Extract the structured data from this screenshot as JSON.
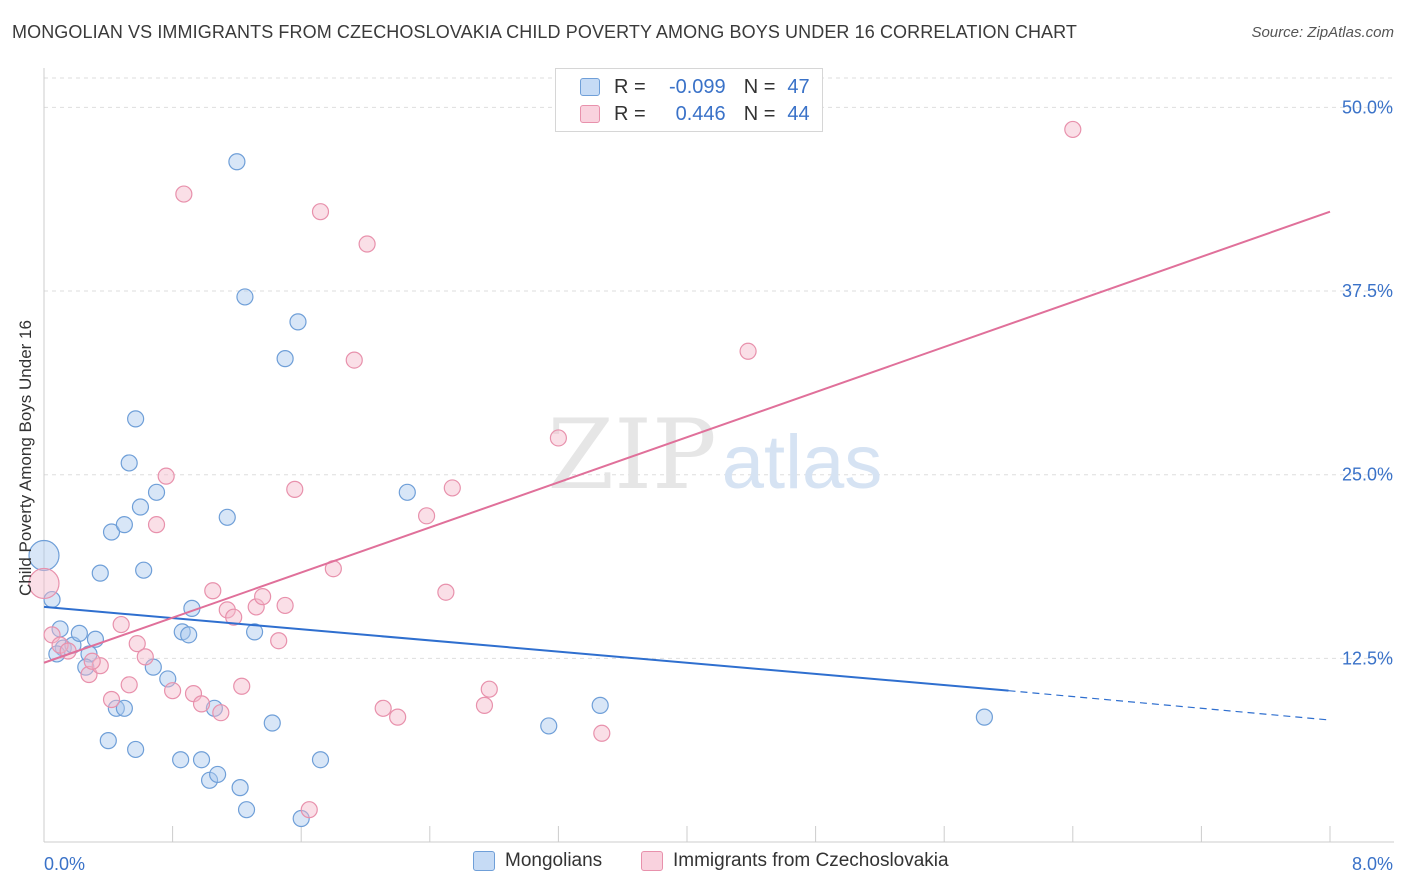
{
  "header": {
    "title": "MONGOLIAN VS IMMIGRANTS FROM CZECHOSLOVAKIA CHILD POVERTY AMONG BOYS UNDER 16 CORRELATION CHART",
    "source": "Source: ZipAtlas.com"
  },
  "watermark": {
    "zip": "ZIP",
    "atlas": "atlas"
  },
  "legend": {
    "rows": [
      {
        "r_label": "R =",
        "r_value": "-0.099",
        "n_label": "N =",
        "n_value": "47",
        "color": "#a9c8ee"
      },
      {
        "r_label": "R =",
        "r_value": "0.446",
        "n_label": "N =",
        "n_value": "44",
        "color": "#f4b7ca"
      }
    ]
  },
  "chart_data": {
    "type": "scatter",
    "title": "MONGOLIAN VS IMMIGRANTS FROM CZECHOSLOVAKIA CHILD POVERTY AMONG BOYS UNDER 16 CORRELATION CHART",
    "ylabel": "Child Poverty Among Boys Under 16",
    "xlabel": "",
    "xlim": [
      0,
      8
    ],
    "ylim": [
      0,
      52
    ],
    "x_tick_labels": [
      "0.0%",
      "8.0%"
    ],
    "y_ticks": [
      12.5,
      25.0,
      37.5,
      50.0
    ],
    "y_tick_labels": [
      "12.5%",
      "25.0%",
      "37.5%",
      "50.0%"
    ],
    "grid": true,
    "legend_placement": "bottom",
    "colors": {
      "mongolians_fill": "#a9c8ee",
      "mongolians_stroke": "#6f9fd8",
      "mongolians_line": "#2f6fcf",
      "czech_fill": "#f4b7ca",
      "czech_stroke": "#e891ac",
      "czech_line": "#e0709a",
      "tick_label": "#3a72c8"
    },
    "series": [
      {
        "name": "Mongolians",
        "trend": {
          "x0": 0.0,
          "y0": 16.0,
          "x1": 6.0,
          "y1": 10.3,
          "x_dash_end": 8.0,
          "y_dash_end": 8.3
        },
        "points": [
          [
            0.0,
            19.5
          ],
          [
            0.05,
            16.5
          ],
          [
            0.1,
            14.5
          ],
          [
            0.12,
            13.2
          ],
          [
            0.08,
            12.8
          ],
          [
            0.18,
            13.4
          ],
          [
            0.22,
            14.2
          ],
          [
            0.28,
            12.8
          ],
          [
            0.32,
            13.8
          ],
          [
            0.26,
            11.9
          ],
          [
            0.35,
            18.3
          ],
          [
            0.42,
            21.1
          ],
          [
            0.5,
            21.6
          ],
          [
            0.53,
            25.8
          ],
          [
            0.4,
            6.9
          ],
          [
            0.45,
            9.1
          ],
          [
            0.57,
            28.8
          ],
          [
            0.6,
            22.8
          ],
          [
            0.62,
            18.5
          ],
          [
            0.7,
            23.8
          ],
          [
            0.68,
            11.9
          ],
          [
            0.77,
            11.1
          ],
          [
            0.86,
            14.3
          ],
          [
            0.9,
            14.1
          ],
          [
            0.92,
            15.9
          ],
          [
            1.06,
            9.1
          ],
          [
            1.14,
            22.1
          ],
          [
            1.2,
            46.3
          ],
          [
            1.25,
            37.1
          ],
          [
            1.31,
            14.3
          ],
          [
            1.42,
            8.1
          ],
          [
            1.5,
            32.9
          ],
          [
            1.58,
            35.4
          ],
          [
            0.85,
            5.6
          ],
          [
            0.98,
            5.6
          ],
          [
            1.03,
            4.2
          ],
          [
            1.08,
            4.6
          ],
          [
            1.22,
            3.7
          ],
          [
            1.26,
            2.2
          ],
          [
            1.6,
            1.6
          ],
          [
            1.72,
            5.6
          ],
          [
            2.26,
            23.8
          ],
          [
            3.14,
            7.9
          ],
          [
            3.46,
            9.3
          ],
          [
            5.85,
            8.5
          ],
          [
            0.5,
            9.1
          ],
          [
            0.57,
            6.3
          ]
        ]
      },
      {
        "name": "Immigrants from Czechoslovakia",
        "trend": {
          "x0": 0.0,
          "y0": 12.2,
          "x1": 8.0,
          "y1": 42.9
        },
        "points": [
          [
            0.0,
            17.6
          ],
          [
            0.05,
            14.1
          ],
          [
            0.1,
            13.4
          ],
          [
            0.15,
            13.0
          ],
          [
            0.28,
            11.4
          ],
          [
            0.35,
            12.0
          ],
          [
            0.42,
            9.7
          ],
          [
            0.48,
            14.8
          ],
          [
            0.53,
            10.7
          ],
          [
            0.58,
            13.5
          ],
          [
            0.63,
            12.6
          ],
          [
            0.7,
            21.6
          ],
          [
            0.76,
            24.9
          ],
          [
            0.8,
            10.3
          ],
          [
            0.87,
            44.1
          ],
          [
            0.93,
            10.1
          ],
          [
            0.98,
            9.4
          ],
          [
            1.05,
            17.1
          ],
          [
            1.1,
            8.8
          ],
          [
            1.14,
            15.8
          ],
          [
            1.18,
            15.3
          ],
          [
            1.23,
            10.6
          ],
          [
            1.32,
            16.0
          ],
          [
            1.36,
            16.7
          ],
          [
            1.46,
            13.7
          ],
          [
            1.5,
            16.1
          ],
          [
            1.56,
            24.0
          ],
          [
            1.65,
            2.2
          ],
          [
            1.72,
            42.9
          ],
          [
            1.8,
            18.6
          ],
          [
            1.93,
            32.8
          ],
          [
            2.01,
            40.7
          ],
          [
            2.11,
            9.1
          ],
          [
            2.2,
            8.5
          ],
          [
            2.38,
            22.2
          ],
          [
            2.5,
            17.0
          ],
          [
            2.54,
            24.1
          ],
          [
            2.74,
            9.3
          ],
          [
            2.77,
            10.4
          ],
          [
            3.2,
            27.5
          ],
          [
            3.47,
            7.4
          ],
          [
            4.38,
            33.4
          ],
          [
            6.4,
            48.5
          ],
          [
            0.3,
            12.3
          ]
        ]
      }
    ]
  },
  "bottom_legend": {
    "items": [
      {
        "label": "Mongolians"
      },
      {
        "label": "Immigrants from Czechoslovakia"
      }
    ]
  }
}
